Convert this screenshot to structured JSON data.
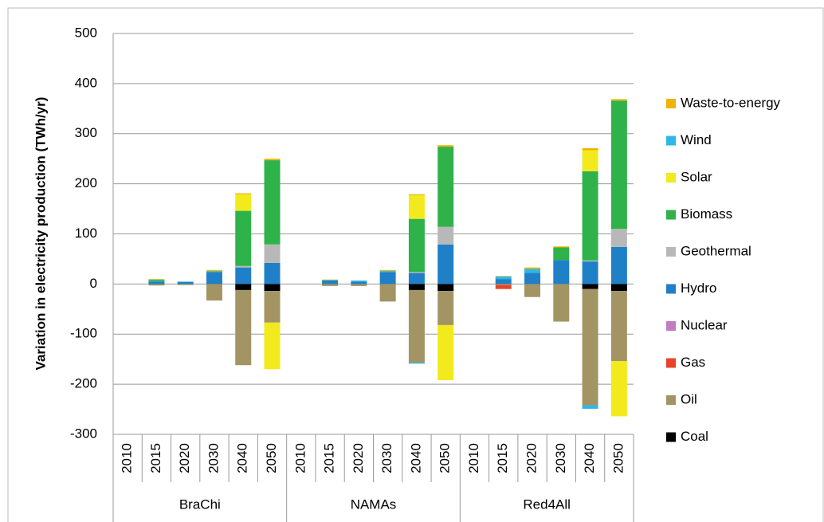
{
  "chart_data": {
    "type": "bar",
    "stacked": true,
    "y_label": "Variation in electricity production (TWh/yr)",
    "categories": [
      "2010",
      "2015",
      "2020",
      "2030",
      "2040",
      "2050",
      "2010",
      "2015",
      "2020",
      "2030",
      "2040",
      "2050",
      "2010",
      "2015",
      "2020",
      "2030",
      "2040",
      "2050"
    ],
    "groups": [
      "BraChi",
      "NAMAs",
      "Red4All"
    ],
    "ylim": [
      -300,
      500
    ],
    "yticks": [
      -300,
      -200,
      -100,
      0,
      100,
      200,
      300,
      400,
      500
    ],
    "grid": true,
    "series": [
      {
        "name": "Coal",
        "color": "#000000",
        "values": [
          0,
          0,
          0,
          0,
          -12,
          -14,
          0,
          0,
          0,
          0,
          -12,
          -14,
          0,
          0,
          0,
          0,
          -10,
          -14
        ]
      },
      {
        "name": "Oil",
        "color": "#a39464",
        "values": [
          0,
          -3,
          -2,
          -33,
          -150,
          -63,
          0,
          -4,
          -4,
          -35,
          -145,
          -68,
          0,
          -2,
          -26,
          -75,
          -232,
          -140
        ]
      },
      {
        "name": "Gas",
        "color": "#e8432a",
        "values": [
          0,
          0,
          0,
          0,
          0,
          0,
          0,
          0,
          0,
          0,
          0,
          0,
          0,
          -8,
          0,
          0,
          0,
          0
        ]
      },
      {
        "name": "Nuclear",
        "color": "#c27bc0",
        "values": [
          0,
          0,
          0,
          0,
          0,
          0,
          0,
          0,
          0,
          0,
          0,
          0,
          0,
          0,
          0,
          0,
          0,
          0
        ]
      },
      {
        "name": "Hydro",
        "color": "#1f80c8",
        "values": [
          0,
          5,
          4,
          24,
          33,
          42,
          0,
          7,
          5,
          24,
          22,
          79,
          0,
          10,
          22,
          48,
          45,
          74
        ]
      },
      {
        "name": "Geothermal",
        "color": "#b8b8b8",
        "values": [
          0,
          0,
          0,
          0,
          3,
          37,
          0,
          0,
          0,
          0,
          2,
          35,
          0,
          0,
          0,
          0,
          2,
          36
        ]
      },
      {
        "name": "Biomass",
        "color": "#2fb24a",
        "values": [
          0,
          3,
          0,
          1,
          110,
          168,
          0,
          0,
          0,
          0,
          106,
          160,
          0,
          0,
          0,
          25,
          178,
          256
        ]
      },
      {
        "name": "Solar",
        "color": "#f2ea1c",
        "values": [
          0,
          0,
          0,
          0,
          33,
          -93,
          0,
          0,
          0,
          0,
          47,
          -110,
          0,
          0,
          0,
          0,
          42,
          -110
        ]
      },
      {
        "name": "Wind",
        "color": "#2eb8e8",
        "values": [
          0,
          1,
          1,
          1,
          0,
          0,
          0,
          1,
          2,
          2,
          -2,
          0,
          0,
          5,
          8,
          0,
          -7,
          0
        ]
      },
      {
        "name": "Waste-to-energy",
        "color": "#f0b400",
        "values": [
          0,
          1,
          0,
          2,
          2,
          3,
          0,
          1,
          0,
          2,
          2,
          3,
          0,
          1,
          3,
          2,
          4,
          3
        ]
      }
    ]
  }
}
